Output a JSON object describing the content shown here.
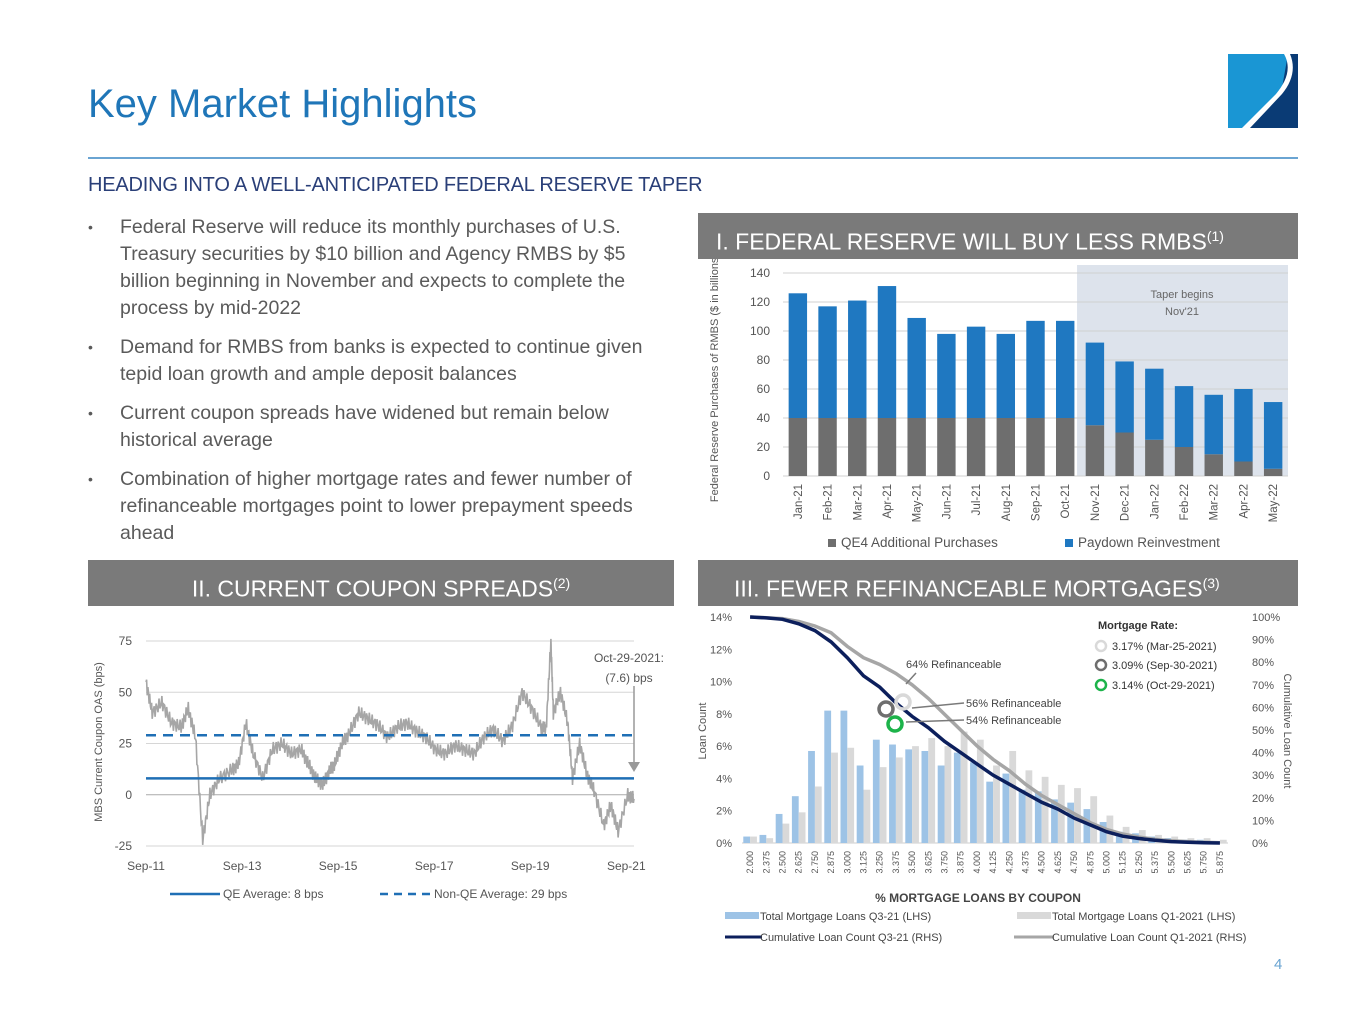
{
  "page": {
    "title": "Key Market Highlights",
    "subheading": "HEADING INTO A WELL-ANTICIPATED FEDERAL RESERVE TAPER",
    "page_number": "4",
    "bullets": [
      "Federal Reserve will reduce its monthly purchases of U.S. Treasury securities by $10 billion and Agency RMBS by $5 billion beginning in November and expects to complete the process by mid-2022",
      "Demand for RMBS from banks is expected to continue given tepid loan growth and ample deposit balances",
      "Current coupon spreads have widened but remain below historical average",
      "Combination of higher mortgage rates and fewer number of refinanceable mortgages point to lower prepayment speeds ahead"
    ],
    "bullet_glyph": "•",
    "sections": [
      {
        "label": "I. FEDERAL RESERVE WILL BUY LESS RMBS",
        "note": "(1)"
      },
      {
        "label": "II. CURRENT COUPON SPREADS",
        "note": "(2)"
      },
      {
        "label": "III. FEWER REFINANCEABLE MORTGAGES",
        "note": "(3)"
      }
    ],
    "colors": {
      "brand_blue": "#1f76b8",
      "navy": "#2a3f78",
      "header_gray": "#7a7a7a",
      "bar_blue": "#1f78c1",
      "bar_gray": "#6e6e6e",
      "light_blue": "#9dc3e6",
      "light_gray": "#d9d9d9",
      "dark_navy": "#0c1f5c",
      "green": "#1db34a"
    }
  },
  "chart_data": [
    {
      "type": "bar",
      "stacked": true,
      "ylabel": "Federal Reserve Purchases of RMBS ($ in billions)",
      "ylim": [
        0,
        140
      ],
      "yticks": [
        0,
        20,
        40,
        60,
        80,
        100,
        120,
        140
      ],
      "grid": true,
      "categories": [
        "Jan-21",
        "Feb-21",
        "Mar-21",
        "Apr-21",
        "May-21",
        "Jun-21",
        "Jul-21",
        "Aug-21",
        "Sep-21",
        "Oct-21",
        "Nov-21",
        "Dec-21",
        "Jan-22",
        "Feb-22",
        "Mar-22",
        "Apr-22",
        "May-22"
      ],
      "series": [
        {
          "name": "QE4 Additional Purchases",
          "values": [
            40,
            40,
            40,
            40,
            40,
            40,
            40,
            40,
            40,
            40,
            35,
            30,
            25,
            20,
            15,
            10,
            5
          ]
        },
        {
          "name": "Paydown Reinvestment",
          "values": [
            86,
            77,
            81,
            91,
            69,
            58,
            63,
            58,
            67,
            67,
            57,
            49,
            49,
            42,
            41,
            50,
            46
          ]
        }
      ],
      "annotation": {
        "text_line1": "Taper begins",
        "text_line2": "Nov'21",
        "shaded_from": "Nov-21"
      },
      "legend_position": "bottom"
    },
    {
      "type": "line",
      "ylabel": "MBS Current Coupon OAS (bps)",
      "ylim": [
        -25,
        75
      ],
      "yticks": [
        -25,
        0,
        25,
        50,
        75
      ],
      "xticks": [
        "Sep-11",
        "Sep-13",
        "Sep-15",
        "Sep-17",
        "Sep-19",
        "Sep-21"
      ],
      "x_range_years": [
        2011.67,
        2021.83
      ],
      "grid": true,
      "series": [
        {
          "name": "MBS Current Coupon OAS",
          "x": [
            2011.67,
            2011.8,
            2012.0,
            2012.2,
            2012.4,
            2012.55,
            2012.7,
            2012.85,
            2013.0,
            2013.2,
            2013.45,
            2013.6,
            2013.75,
            2013.9,
            2014.1,
            2014.3,
            2014.5,
            2014.7,
            2014.9,
            2015.05,
            2015.2,
            2015.35,
            2015.5,
            2015.6,
            2015.75,
            2015.9,
            2016.1,
            2016.3,
            2016.5,
            2016.7,
            2016.9,
            2017.1,
            2017.3,
            2017.5,
            2017.7,
            2017.9,
            2018.1,
            2018.3,
            2018.5,
            2018.7,
            2018.9,
            2019.1,
            2019.3,
            2019.5,
            2019.7,
            2019.9,
            2020.0,
            2020.1,
            2020.15,
            2020.3,
            2020.45,
            2020.55,
            2020.7,
            2020.85,
            2021.0,
            2021.2,
            2021.35,
            2021.5,
            2021.7,
            2021.83
          ],
          "values": [
            55,
            40,
            45,
            35,
            33,
            42,
            28,
            -22,
            0,
            8,
            12,
            15,
            35,
            20,
            8,
            22,
            25,
            20,
            22,
            15,
            8,
            5,
            12,
            15,
            25,
            30,
            40,
            37,
            34,
            28,
            33,
            35,
            31,
            28,
            22,
            20,
            24,
            22,
            20,
            28,
            32,
            26,
            34,
            50,
            42,
            33,
            32,
            75,
            40,
            50,
            35,
            8,
            25,
            10,
            2,
            -15,
            -5,
            -18,
            0,
            -2
          ]
        },
        {
          "name": "QE Average: 8 bps",
          "constant": 8,
          "style": "solid"
        },
        {
          "name": "Non-QE Average: 29 bps",
          "constant": 29,
          "style": "dashed"
        }
      ],
      "annotation": {
        "text_line1": "Oct-29-2021:",
        "text_line2": "(7.6) bps"
      },
      "legend_position": "bottom"
    },
    {
      "type": "bar",
      "title": "% MORTGAGE LOANS BY COUPON",
      "ylabel": "Loan Count",
      "y2label": "Cumulative Loan Count",
      "ylim": [
        0,
        14
      ],
      "yticks": [
        0,
        2,
        4,
        6,
        8,
        10,
        12,
        14
      ],
      "y2lim": [
        0,
        100
      ],
      "y2ticks": [
        0,
        10,
        20,
        30,
        40,
        50,
        60,
        70,
        80,
        90,
        100
      ],
      "categories": [
        "2.000",
        "2.375",
        "2.500",
        "2.625",
        "2.750",
        "2.875",
        "3.000",
        "3.125",
        "3.250",
        "3.375",
        "3.500",
        "3.625",
        "3.750",
        "3.875",
        "4.000",
        "4.125",
        "4.250",
        "4.375",
        "4.500",
        "4.625",
        "4.750",
        "4.875",
        "5.000",
        "5.125",
        "5.250",
        "5.375",
        "5.500",
        "5.625",
        "5.750",
        "5.875"
      ],
      "series": [
        {
          "name": "Total Mortgage Loans Q3-21 (LHS)",
          "axis": "left",
          "kind": "bar",
          "values": [
            0.4,
            0.5,
            1.8,
            2.9,
            5.7,
            8.2,
            8.2,
            4.8,
            6.4,
            6.1,
            5.8,
            5.7,
            4.8,
            5.6,
            5.0,
            3.8,
            4.3,
            3.3,
            3.2,
            2.7,
            2.5,
            2.1,
            1.3,
            0.7,
            0.6,
            0.4,
            0.3,
            0.2,
            0.2,
            0.1
          ]
        },
        {
          "name": "Total Mortgage Loans Q1-2021 (LHS)",
          "axis": "left",
          "kind": "bar",
          "values": [
            0.4,
            0.3,
            1.2,
            1.9,
            3.5,
            5.6,
            5.9,
            3.3,
            4.7,
            5.3,
            6.0,
            6.5,
            6.0,
            6.9,
            6.4,
            4.8,
            5.7,
            4.5,
            4.1,
            3.6,
            3.4,
            2.9,
            1.7,
            1.0,
            0.8,
            0.5,
            0.4,
            0.3,
            0.3,
            0.2
          ]
        },
        {
          "name": "Cumulative Loan Count Q3-21 (RHS)",
          "axis": "right",
          "kind": "line",
          "values": [
            100,
            99.6,
            99,
            97,
            94,
            89,
            82,
            74,
            69,
            62,
            56,
            51,
            45,
            40,
            35,
            30,
            26,
            22,
            18,
            15,
            11,
            8,
            5,
            3,
            2,
            1.2,
            0.6,
            0.3,
            0.1,
            0
          ]
        },
        {
          "name": "Cumulative Loan Count Q1-2021 (RHS)",
          "axis": "right",
          "kind": "line",
          "values": [
            100,
            99.7,
            99.3,
            98,
            96,
            93,
            87,
            82,
            79,
            75,
            70,
            64,
            57,
            50,
            43,
            37,
            32,
            26,
            21,
            17,
            13,
            9,
            6,
            4,
            2.6,
            1.6,
            1,
            0.6,
            0.3,
            0.1
          ]
        }
      ],
      "markers_legend_title": "Mortgage Rate:",
      "markers": [
        {
          "label": "3.17% (Mar-25-2021)",
          "color": "#d9d9d9",
          "callout": "64% Refinanceable",
          "value": 64
        },
        {
          "label": "3.09% (Sep-30-2021)",
          "color": "#6e6e6e",
          "callout": "56% Refinanceable",
          "value": 56
        },
        {
          "label": "3.14% (Oct-29-2021)",
          "color": "#1db34a",
          "callout": "54% Refinanceable",
          "value": 54
        }
      ],
      "legend_position": "bottom"
    }
  ]
}
